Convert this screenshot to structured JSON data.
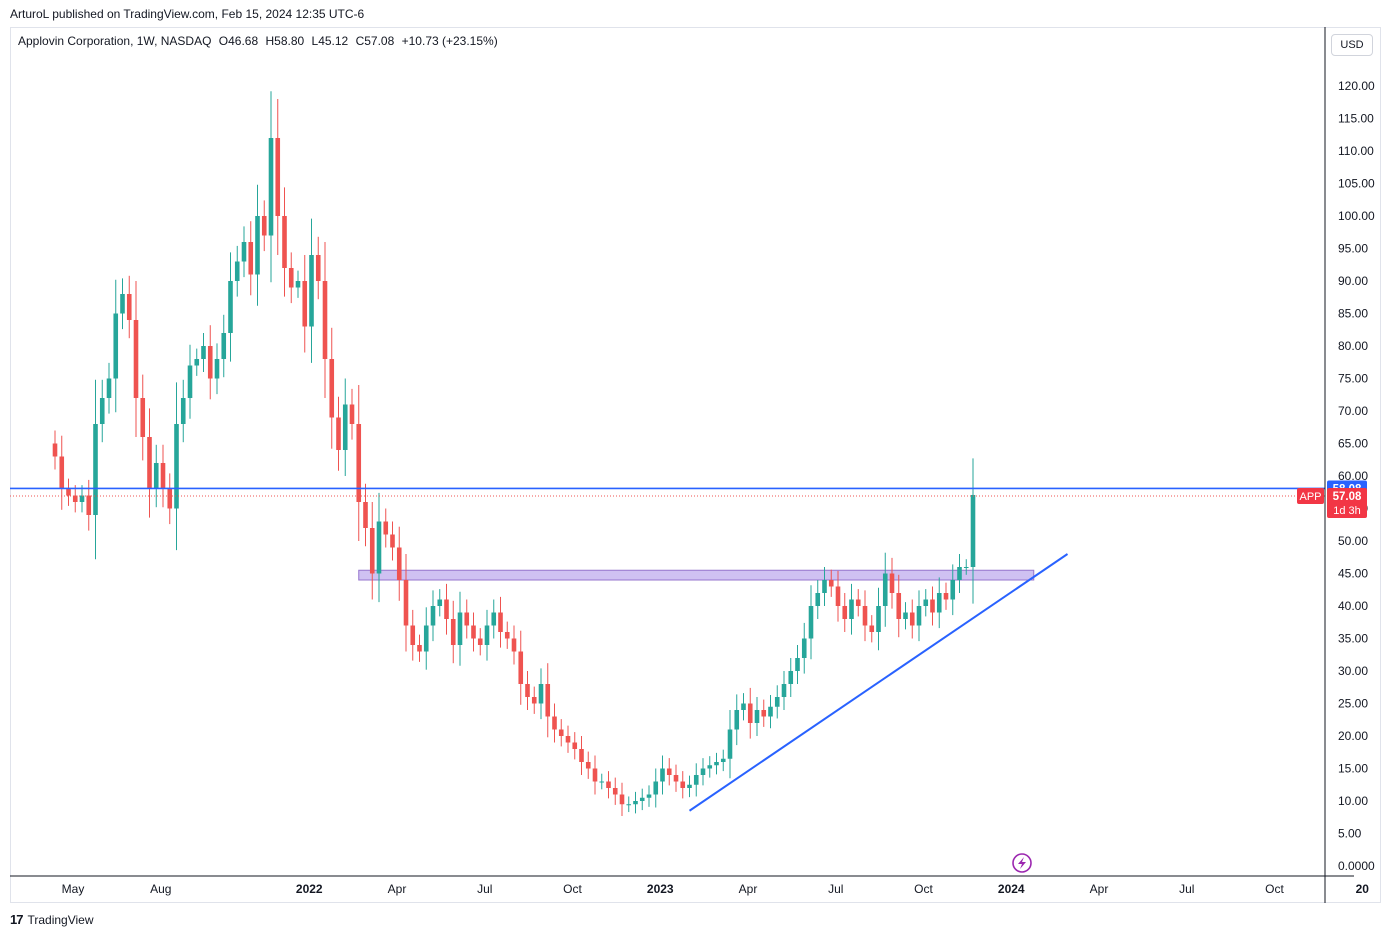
{
  "publish_line": "ArturoL published on TradingView.com, Feb 15, 2024 12:35 UTC-6",
  "legend": {
    "symbol": "Applovin Corporation, 1W, NASDAQ",
    "open": "O46.68",
    "high": "H58.80",
    "low": "L45.12",
    "close": "C57.08",
    "change": "+10.73 (+23.15%)"
  },
  "currency": "USD",
  "footer": {
    "logo_mark": "17",
    "brand": "TradingView"
  },
  "colors": {
    "up": "#26a69a",
    "down": "#ef5350",
    "level_line": "#2962ff",
    "trend_line": "#2962ff",
    "zone_fill": "#c7b6f0",
    "zone_stroke": "#9575cd",
    "price_badge": "#f23645",
    "level_badge": "#2962ff",
    "grid": "#f0f3fa"
  },
  "chart_data": {
    "type": "candlestick",
    "y_axis": {
      "min": 0,
      "max": 120,
      "ticks": [
        "120.00",
        "115.00",
        "110.00",
        "105.00",
        "100.00",
        "95.00",
        "90.00",
        "85.00",
        "80.00",
        "75.00",
        "70.00",
        "65.00",
        "60.00",
        "55.00",
        "50.00",
        "45.00",
        "40.00",
        "35.00",
        "30.00",
        "25.00",
        "20.00",
        "15.00",
        "10.00",
        "5.00",
        "0.0000"
      ]
    },
    "x_axis": {
      "ticks": [
        {
          "label": "May",
          "week": 0,
          "bold": false
        },
        {
          "label": "Aug",
          "week": 13,
          "bold": false
        },
        {
          "label": "2022",
          "week": 35,
          "bold": true
        },
        {
          "label": "Apr",
          "week": 48,
          "bold": false
        },
        {
          "label": "Jul",
          "week": 61,
          "bold": false
        },
        {
          "label": "Oct",
          "week": 74,
          "bold": false
        },
        {
          "label": "2023",
          "week": 87,
          "bold": true
        },
        {
          "label": "Apr",
          "week": 100,
          "bold": false
        },
        {
          "label": "Jul",
          "week": 113,
          "bold": false
        },
        {
          "label": "Oct",
          "week": 126,
          "bold": false
        },
        {
          "label": "2024",
          "week": 139,
          "bold": true
        },
        {
          "label": "Apr",
          "week": 152,
          "bold": false
        },
        {
          "label": "Jul",
          "week": 165,
          "bold": false
        },
        {
          "label": "Oct",
          "week": 178,
          "bold": false
        },
        {
          "label": "20",
          "week": 191,
          "bold": true
        }
      ]
    },
    "closes": [
      63,
      58,
      57,
      56,
      57,
      54,
      68,
      72,
      75,
      85,
      88,
      84,
      72,
      66,
      58,
      62,
      58,
      55,
      68,
      72,
      77,
      78,
      80,
      75,
      78,
      82,
      90,
      93,
      96,
      91,
      100,
      97,
      112,
      100,
      92,
      89,
      90,
      83,
      94,
      90,
      78,
      69,
      64,
      71,
      68,
      56,
      52,
      45,
      53,
      51,
      49,
      44,
      37,
      34,
      33,
      37,
      40,
      41,
      38,
      34,
      39,
      37,
      35,
      34,
      37,
      39,
      36,
      35,
      33,
      28,
      26,
      25,
      28,
      23,
      21,
      20,
      19,
      18,
      16,
      15,
      13,
      13,
      12,
      11,
      9.5,
      9.5,
      10,
      10.5,
      11,
      13,
      15,
      14,
      13,
      12,
      12.5,
      14,
      15,
      15.5,
      16,
      16.5,
      21,
      24,
      25,
      22,
      24,
      23,
      24.5,
      26,
      28,
      30,
      32,
      35,
      40,
      42,
      44,
      43,
      40,
      38,
      41,
      40,
      37,
      36,
      40,
      45,
      42,
      38,
      39,
      37,
      40,
      41,
      39,
      42,
      41,
      44,
      46,
      46,
      57.08
    ],
    "markers": [
      {
        "type": "hline",
        "value": 58.08,
        "label": "58.08"
      },
      {
        "type": "current",
        "value": 57.08,
        "ticker": "APP",
        "label": "57.08",
        "countdown": "1d 3h"
      },
      {
        "type": "zone",
        "from_week": 45,
        "to_week": 145,
        "low": 44,
        "high": 45.5
      },
      {
        "type": "trendline",
        "from_week": 94,
        "from_value": 8.5,
        "to_week": 150,
        "to_value": 48
      }
    ]
  }
}
